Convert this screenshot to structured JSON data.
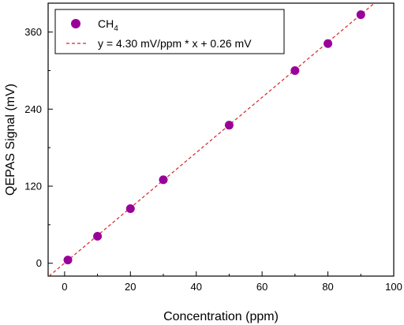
{
  "chart_data": {
    "type": "scatter",
    "title": "",
    "xlabel": "Concentration (ppm)",
    "ylabel": "QEPAS Signal (mV)",
    "xlim": [
      -5,
      100
    ],
    "ylim": [
      -20,
      405
    ],
    "xticks": [
      0,
      20,
      40,
      60,
      80,
      100
    ],
    "yticks": [
      0,
      120,
      240,
      360
    ],
    "grid": false,
    "legend_position": "top-left",
    "series": [
      {
        "name": "CH4",
        "name_main": "CH",
        "name_sub": "4",
        "kind": "scatter",
        "color": "#990099",
        "x": [
          1,
          10,
          20,
          30,
          50,
          70,
          80,
          90
        ],
        "y": [
          5,
          42,
          85,
          130,
          215,
          300,
          342,
          387
        ]
      },
      {
        "name": "y = 4.30 mV/ppm * x + 0.26 mV",
        "kind": "fit-line",
        "color": "#d62728",
        "slope": 4.3,
        "intercept": 0.26
      }
    ]
  }
}
